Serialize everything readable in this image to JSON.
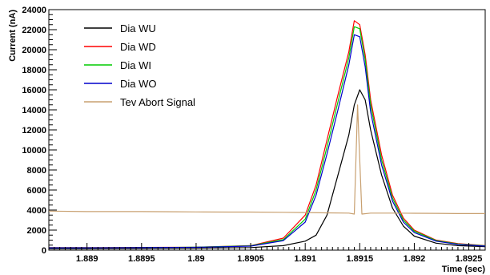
{
  "chart_data": {
    "type": "line",
    "xlabel": "Time (sec)",
    "ylabel": "Current (nA)",
    "xlim": [
      1.88865,
      1.89265
    ],
    "ylim": [
      0,
      24000
    ],
    "x_ticks": [
      1.889,
      1.8895,
      1.89,
      1.8905,
      1.891,
      1.8915,
      1.892,
      1.8925
    ],
    "x_tick_labels": [
      "1.889",
      "1.8895",
      "1.89",
      "1.8905",
      "1.891",
      "1.8915",
      "1.892",
      "1.8925"
    ],
    "y_ticks": [
      0,
      2000,
      4000,
      6000,
      8000,
      10000,
      12000,
      14000,
      16000,
      18000,
      20000,
      22000,
      24000
    ],
    "y_tick_labels": [
      "0",
      "2000",
      "4000",
      "6000",
      "8000",
      "10000",
      "12000",
      "14000",
      "16000",
      "18000",
      "20000",
      "22000",
      "24000"
    ],
    "grid": false,
    "legend_position": "top-left",
    "series": [
      {
        "name": "Dia WU",
        "color": "#000000",
        "x": [
          1.88865,
          1.889,
          1.8895,
          1.89,
          1.8905,
          1.8908,
          1.891,
          1.8911,
          1.8912,
          1.8913,
          1.8914,
          1.89145,
          1.8915,
          1.89155,
          1.8916,
          1.8917,
          1.8918,
          1.8919,
          1.892,
          1.8922,
          1.8924,
          1.89265
        ],
        "values": [
          150,
          150,
          170,
          200,
          260,
          450,
          900,
          1500,
          3500,
          7500,
          11500,
          14500,
          16000,
          15000,
          12000,
          7500,
          4200,
          2400,
          1400,
          700,
          450,
          350
        ]
      },
      {
        "name": "Dia WD",
        "color": "#ff0000",
        "x": [
          1.88865,
          1.889,
          1.8895,
          1.89,
          1.8905,
          1.8908,
          1.891,
          1.8911,
          1.8912,
          1.8913,
          1.8914,
          1.89145,
          1.8915,
          1.89155,
          1.8916,
          1.8917,
          1.8918,
          1.8919,
          1.892,
          1.8922,
          1.8924,
          1.89265
        ],
        "values": [
          250,
          250,
          270,
          300,
          450,
          1200,
          3500,
          6500,
          11000,
          15500,
          19800,
          22900,
          22500,
          19500,
          15000,
          9500,
          5500,
          3200,
          2000,
          1000,
          650,
          450
        ]
      },
      {
        "name": "Dia WI",
        "color": "#00cc00",
        "x": [
          1.88865,
          1.889,
          1.8895,
          1.89,
          1.8905,
          1.8908,
          1.891,
          1.8911,
          1.8912,
          1.8913,
          1.8914,
          1.89145,
          1.8915,
          1.89155,
          1.8916,
          1.8917,
          1.8918,
          1.8919,
          1.892,
          1.8922,
          1.8924,
          1.89265
        ],
        "values": [
          240,
          240,
          260,
          290,
          430,
          1050,
          3100,
          6000,
          10300,
          14800,
          19200,
          22300,
          22100,
          19000,
          14500,
          9000,
          5200,
          3000,
          1900,
          950,
          620,
          430
        ]
      },
      {
        "name": "Dia WO",
        "color": "#0000cc",
        "x": [
          1.88865,
          1.889,
          1.8895,
          1.89,
          1.8905,
          1.8908,
          1.891,
          1.8911,
          1.8912,
          1.8913,
          1.8914,
          1.89145,
          1.8915,
          1.89155,
          1.8916,
          1.8917,
          1.8918,
          1.8919,
          1.892,
          1.8922,
          1.8924,
          1.89265
        ],
        "values": [
          230,
          230,
          250,
          280,
          400,
          950,
          2800,
          5500,
          9600,
          14000,
          18500,
          21500,
          21300,
          18300,
          13800,
          8500,
          4900,
          2800,
          1750,
          900,
          580,
          400
        ]
      },
      {
        "name": "Tev Abort Signal",
        "color": "#c8a070",
        "x": [
          1.88865,
          1.889,
          1.8893,
          1.8895,
          1.8898,
          1.89,
          1.8903,
          1.8905,
          1.8908,
          1.891,
          1.8912,
          1.8914,
          1.89145,
          1.89148,
          1.89152,
          1.8916,
          1.8918,
          1.892,
          1.8922,
          1.8924,
          1.89265
        ],
        "values": [
          3900,
          3850,
          3850,
          3850,
          3830,
          3820,
          3800,
          3800,
          3780,
          3750,
          3720,
          3700,
          3600,
          14500,
          3600,
          3700,
          3700,
          3680,
          3670,
          3650,
          3650
        ]
      }
    ]
  }
}
